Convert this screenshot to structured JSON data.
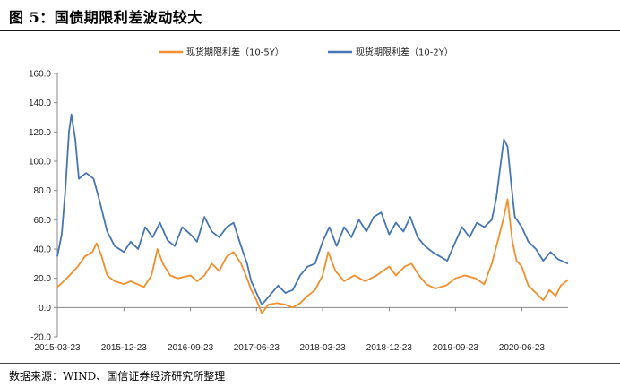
{
  "figure": {
    "title": "图 5：国债期限利差波动较大",
    "source": "数据来源：WIND、国信证券经济研究所整理"
  },
  "colors": {
    "series_5y": "#F28E2B",
    "series_2y": "#4575B4",
    "axis": "#888888"
  },
  "chart_data": {
    "type": "line",
    "title": "",
    "xlabel": "",
    "ylabel": "",
    "ylim": [
      -20,
      160
    ],
    "yticks": [
      -20,
      0,
      20,
      40,
      60,
      80,
      100,
      120,
      140,
      160
    ],
    "ytick_labels": [
      "-20.0",
      "0.0",
      "20.0",
      "40.0",
      "60.0",
      "80.0",
      "100.0",
      "120.0",
      "140.0",
      "160.0"
    ],
    "xticks": [
      "2015-03-23",
      "2015-12-23",
      "2016-09-23",
      "2017-06-23",
      "2018-03-23",
      "2018-12-23",
      "2019-09-23",
      "2020-06-23"
    ],
    "x_start": "2015-03-23",
    "x_end": "2020-12-31",
    "legend": "top-center",
    "grid": false,
    "series": [
      {
        "name": "现货期限利差（10-5Y）",
        "color": "#F28E2B",
        "points": [
          [
            "2015-03-23",
            14
          ],
          [
            "2015-05-01",
            20
          ],
          [
            "2015-06-15",
            28
          ],
          [
            "2015-07-15",
            35
          ],
          [
            "2015-08-15",
            38
          ],
          [
            "2015-09-01",
            44
          ],
          [
            "2015-09-20",
            36
          ],
          [
            "2015-10-15",
            22
          ],
          [
            "2015-11-15",
            18
          ],
          [
            "2015-12-23",
            16
          ],
          [
            "2016-01-20",
            18
          ],
          [
            "2016-03-15",
            14
          ],
          [
            "2016-04-15",
            22
          ],
          [
            "2016-05-10",
            40
          ],
          [
            "2016-06-01",
            30
          ],
          [
            "2016-07-01",
            22
          ],
          [
            "2016-08-01",
            20
          ],
          [
            "2016-09-23",
            22
          ],
          [
            "2016-10-20",
            18
          ],
          [
            "2016-11-20",
            22
          ],
          [
            "2016-12-20",
            30
          ],
          [
            "2017-01-20",
            25
          ],
          [
            "2017-02-20",
            35
          ],
          [
            "2017-03-20",
            38
          ],
          [
            "2017-04-20",
            30
          ],
          [
            "2017-05-15",
            20
          ],
          [
            "2017-06-01",
            12
          ],
          [
            "2017-06-23",
            5
          ],
          [
            "2017-07-15",
            -4
          ],
          [
            "2017-08-10",
            2
          ],
          [
            "2017-09-15",
            3
          ],
          [
            "2017-10-20",
            2
          ],
          [
            "2017-11-20",
            0
          ],
          [
            "2017-12-20",
            3
          ],
          [
            "2018-01-20",
            8
          ],
          [
            "2018-02-20",
            12
          ],
          [
            "2018-03-23",
            22
          ],
          [
            "2018-04-15",
            38
          ],
          [
            "2018-05-15",
            25
          ],
          [
            "2018-06-20",
            18
          ],
          [
            "2018-08-01",
            22
          ],
          [
            "2018-09-15",
            18
          ],
          [
            "2018-11-01",
            22
          ],
          [
            "2018-12-23",
            28
          ],
          [
            "2019-01-20",
            22
          ],
          [
            "2019-02-25",
            28
          ],
          [
            "2019-03-25",
            30
          ],
          [
            "2019-04-25",
            22
          ],
          [
            "2019-05-25",
            16
          ],
          [
            "2019-07-01",
            13
          ],
          [
            "2019-08-15",
            15
          ],
          [
            "2019-09-23",
            20
          ],
          [
            "2019-11-01",
            22
          ],
          [
            "2019-12-15",
            20
          ],
          [
            "2020-01-20",
            16
          ],
          [
            "2020-02-20",
            30
          ],
          [
            "2020-03-20",
            48
          ],
          [
            "2020-04-10",
            62
          ],
          [
            "2020-04-25",
            74
          ],
          [
            "2020-05-15",
            45
          ],
          [
            "2020-06-01",
            32
          ],
          [
            "2020-06-23",
            28
          ],
          [
            "2020-07-20",
            15
          ],
          [
            "2020-08-20",
            10
          ],
          [
            "2020-09-20",
            5
          ],
          [
            "2020-10-15",
            12
          ],
          [
            "2020-11-10",
            8
          ],
          [
            "2020-12-01",
            15
          ],
          [
            "2020-12-31",
            19
          ]
        ]
      },
      {
        "name": "现货期限利差（10-2Y）",
        "color": "#4575B4",
        "points": [
          [
            "2015-03-23",
            35
          ],
          [
            "2015-04-10",
            50
          ],
          [
            "2015-04-25",
            80
          ],
          [
            "2015-05-10",
            120
          ],
          [
            "2015-05-20",
            132
          ],
          [
            "2015-06-05",
            115
          ],
          [
            "2015-06-20",
            88
          ],
          [
            "2015-07-20",
            92
          ],
          [
            "2015-08-20",
            88
          ],
          [
            "2015-09-15",
            72
          ],
          [
            "2015-10-15",
            52
          ],
          [
            "2015-11-15",
            42
          ],
          [
            "2015-12-23",
            38
          ],
          [
            "2016-01-20",
            45
          ],
          [
            "2016-02-20",
            40
          ],
          [
            "2016-03-20",
            55
          ],
          [
            "2016-04-20",
            48
          ],
          [
            "2016-05-20",
            58
          ],
          [
            "2016-06-20",
            46
          ],
          [
            "2016-07-20",
            42
          ],
          [
            "2016-08-20",
            55
          ],
          [
            "2016-09-23",
            50
          ],
          [
            "2016-10-20",
            45
          ],
          [
            "2016-11-20",
            62
          ],
          [
            "2016-12-20",
            52
          ],
          [
            "2017-01-20",
            48
          ],
          [
            "2017-02-20",
            55
          ],
          [
            "2017-03-20",
            58
          ],
          [
            "2017-04-20",
            42
          ],
          [
            "2017-05-15",
            30
          ],
          [
            "2017-06-01",
            18
          ],
          [
            "2017-06-23",
            10
          ],
          [
            "2017-07-15",
            2
          ],
          [
            "2017-08-15",
            8
          ],
          [
            "2017-09-20",
            15
          ],
          [
            "2017-10-20",
            10
          ],
          [
            "2017-11-20",
            12
          ],
          [
            "2017-12-20",
            22
          ],
          [
            "2018-01-20",
            28
          ],
          [
            "2018-02-20",
            30
          ],
          [
            "2018-03-23",
            45
          ],
          [
            "2018-04-20",
            55
          ],
          [
            "2018-05-20",
            42
          ],
          [
            "2018-06-20",
            55
          ],
          [
            "2018-07-20",
            48
          ],
          [
            "2018-08-20",
            60
          ],
          [
            "2018-09-20",
            52
          ],
          [
            "2018-10-20",
            62
          ],
          [
            "2018-11-20",
            65
          ],
          [
            "2018-12-23",
            50
          ],
          [
            "2019-01-20",
            58
          ],
          [
            "2019-02-20",
            52
          ],
          [
            "2019-03-20",
            62
          ],
          [
            "2019-04-20",
            48
          ],
          [
            "2019-05-20",
            42
          ],
          [
            "2019-06-20",
            38
          ],
          [
            "2019-07-20",
            35
          ],
          [
            "2019-08-20",
            32
          ],
          [
            "2019-09-23",
            45
          ],
          [
            "2019-10-20",
            55
          ],
          [
            "2019-11-20",
            48
          ],
          [
            "2019-12-20",
            58
          ],
          [
            "2020-01-20",
            55
          ],
          [
            "2020-02-20",
            60
          ],
          [
            "2020-03-10",
            75
          ],
          [
            "2020-03-25",
            95
          ],
          [
            "2020-04-10",
            115
          ],
          [
            "2020-04-25",
            110
          ],
          [
            "2020-05-10",
            85
          ],
          [
            "2020-05-25",
            62
          ],
          [
            "2020-06-23",
            55
          ],
          [
            "2020-07-20",
            45
          ],
          [
            "2020-08-20",
            40
          ],
          [
            "2020-09-20",
            32
          ],
          [
            "2020-10-20",
            38
          ],
          [
            "2020-11-20",
            33
          ],
          [
            "2020-12-31",
            30
          ]
        ]
      }
    ]
  }
}
